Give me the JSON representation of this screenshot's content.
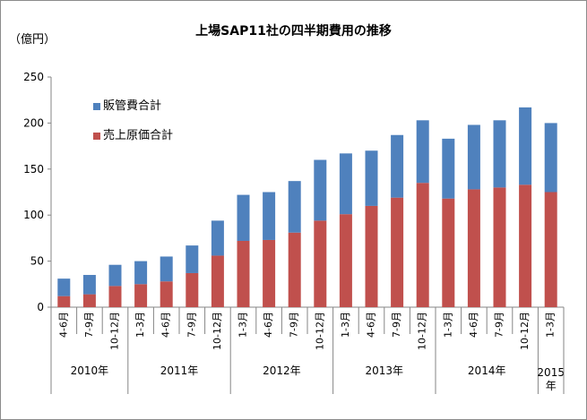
{
  "chart_data": {
    "type": "bar",
    "stacked": true,
    "title": "上場SAP11社の四半期費用の推移",
    "unit_label": "（億円）",
    "ylim": [
      0,
      250
    ],
    "yticks": [
      0,
      50,
      100,
      150,
      200,
      250
    ],
    "grid": false,
    "legend_position": "top-left",
    "categories": [
      "4-6月",
      "7-9月",
      "10-12月",
      "1-3月",
      "4-6月",
      "7-9月",
      "10-12月",
      "1-3月",
      "4-6月",
      "7-9月",
      "10-12月",
      "1-3月",
      "4-6月",
      "7-9月",
      "10-12月",
      "1-3月",
      "4-6月",
      "7-9月",
      "10-12月",
      "1-3月"
    ],
    "year_groups": [
      {
        "label": "2010年",
        "count": 3
      },
      {
        "label": "2011年",
        "count": 4
      },
      {
        "label": "2012年",
        "count": 4
      },
      {
        "label": "2013年",
        "count": 4
      },
      {
        "label": "2014年",
        "count": 4
      },
      {
        "label": "2015\n年",
        "count": 1
      }
    ],
    "series": [
      {
        "name": "売上原価合計",
        "color": "#c0504d",
        "values": [
          12,
          14,
          23,
          25,
          28,
          37,
          56,
          72,
          73,
          81,
          94,
          101,
          110,
          119,
          135,
          118,
          128,
          130,
          133,
          125
        ]
      },
      {
        "name": "販管費合計",
        "color": "#4f81bd",
        "values": [
          19,
          21,
          23,
          25,
          27,
          30,
          38,
          50,
          52,
          56,
          66,
          66,
          60,
          68,
          68,
          65,
          70,
          73,
          84,
          75
        ]
      }
    ],
    "legend_order": [
      "販管費合計",
      "売上原価合計"
    ]
  }
}
